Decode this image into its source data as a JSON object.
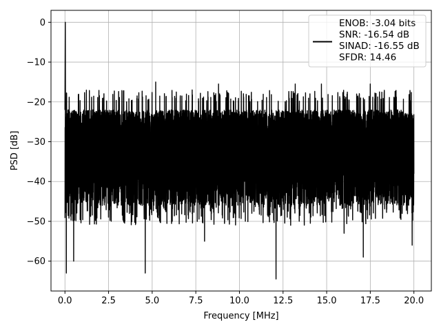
{
  "chart_data": {
    "type": "line",
    "title": "",
    "xlabel": "Frequency [MHz]",
    "ylabel": "PSD [dB]",
    "xlim": [
      -0.8,
      21.0
    ],
    "ylim": [
      -67.5,
      3.0
    ],
    "xticks": [
      0.0,
      2.5,
      5.0,
      7.5,
      10.0,
      12.5,
      15.0,
      17.5,
      20.0
    ],
    "xtick_labels": [
      "0.0",
      "2.5",
      "5.0",
      "7.5",
      "10.0",
      "12.5",
      "15.0",
      "17.5",
      "20.0"
    ],
    "yticks": [
      0,
      -10,
      -20,
      -30,
      -40,
      -50,
      -60
    ],
    "ytick_labels": [
      "0",
      "−10",
      "−20",
      "−30",
      "−40",
      "−50",
      "−60"
    ],
    "grid": true,
    "legend_position": "top-right",
    "line_color": "#000000",
    "legend": {
      "lines": [
        "ENOB: -3.04 bits",
        "SNR: -16.54 dB",
        "SINAD: -16.55 dB",
        "SFDR: 14.46"
      ]
    },
    "series": [
      {
        "x_range": [
          0.0,
          20.0
        ],
        "noise_floor_band": [
          -45,
          -18
        ],
        "peak": {
          "x": 0.02,
          "y": 0
        },
        "notable_minima": [
          {
            "x": 0.08,
            "y": -63
          },
          {
            "x": 0.5,
            "y": -60
          },
          {
            "x": 4.6,
            "y": -63
          },
          {
            "x": 8.0,
            "y": -55
          },
          {
            "x": 12.1,
            "y": -64.5
          },
          {
            "x": 16.0,
            "y": -53
          },
          {
            "x": 17.1,
            "y": -59
          },
          {
            "x": 19.9,
            "y": -56
          }
        ],
        "notable_maxima": [
          {
            "x": 5.2,
            "y": -15
          },
          {
            "x": 8.8,
            "y": -15.5
          },
          {
            "x": 13.2,
            "y": -15.5
          },
          {
            "x": 14.7,
            "y": -15.5
          },
          {
            "x": 17.5,
            "y": -15.5
          }
        ]
      }
    ]
  }
}
